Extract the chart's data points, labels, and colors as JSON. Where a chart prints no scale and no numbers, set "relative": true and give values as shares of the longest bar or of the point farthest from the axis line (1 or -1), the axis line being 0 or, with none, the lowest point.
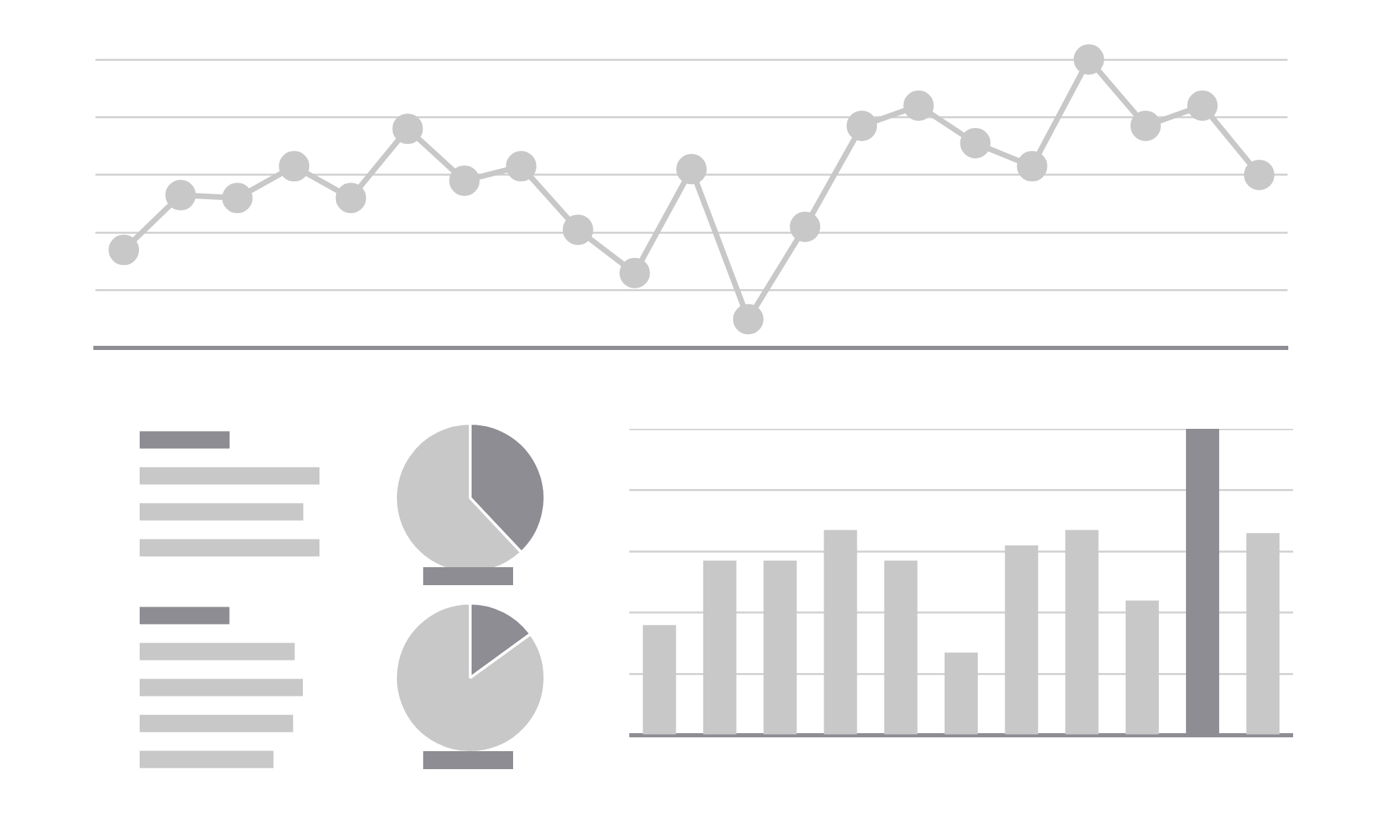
{
  "chart_data": [
    {
      "type": "line",
      "relative": true,
      "grid": true,
      "marker": "circle",
      "categories": [
        null,
        null,
        null,
        null,
        null,
        null,
        null,
        null,
        null,
        null,
        null,
        null,
        null,
        null,
        null,
        null,
        null,
        null,
        null,
        null,
        null
      ],
      "series": [
        {
          "color": "#c8c8c8",
          "values": [
            0.34,
            0.53,
            0.52,
            0.63,
            0.52,
            0.76,
            0.58,
            0.63,
            0.41,
            0.26,
            0.62,
            0.1,
            0.42,
            0.77,
            0.84,
            0.71,
            0.63,
            1,
            0.77,
            0.84,
            0.6
          ]
        }
      ]
    },
    {
      "type": "bar",
      "orientation": "horizontal",
      "relative": true,
      "categories": [
        null,
        null,
        null,
        null
      ],
      "values": [
        0.5,
        1,
        0.91,
        1
      ],
      "colors": [
        "#8e8d93",
        "#c8c8c8",
        "#c8c8c8",
        "#c8c8c8"
      ]
    },
    {
      "type": "pie",
      "categories": [
        null,
        null
      ],
      "values": [
        38,
        62
      ],
      "colors": [
        "#8e8d93",
        "#c8c8c8"
      ]
    },
    {
      "type": "bar",
      "orientation": "horizontal",
      "relative": true,
      "categories": [
        null,
        null,
        null,
        null,
        null
      ],
      "values": [
        0.55,
        0.95,
        1,
        0.94,
        0.82
      ],
      "colors": [
        "#8e8d93",
        "#c8c8c8",
        "#c8c8c8",
        "#c8c8c8",
        "#c8c8c8"
      ]
    },
    {
      "type": "pie",
      "categories": [
        null,
        null
      ],
      "values": [
        15,
        85
      ],
      "colors": [
        "#8e8d93",
        "#c8c8c8"
      ]
    },
    {
      "type": "bar",
      "relative": true,
      "grid": true,
      "categories": [
        null,
        null,
        null,
        null,
        null,
        null,
        null,
        null,
        null,
        null,
        null
      ],
      "values": [
        0.36,
        0.57,
        0.57,
        0.67,
        0.57,
        0.27,
        0.62,
        0.67,
        0.44,
        1,
        0.66
      ],
      "colors": [
        "#c8c8c8",
        "#c8c8c8",
        "#c8c8c8",
        "#c8c8c8",
        "#c8c8c8",
        "#c8c8c8",
        "#c8c8c8",
        "#c8c8c8",
        "#c8c8c8",
        "#8e8d93",
        "#c8c8c8"
      ]
    }
  ]
}
